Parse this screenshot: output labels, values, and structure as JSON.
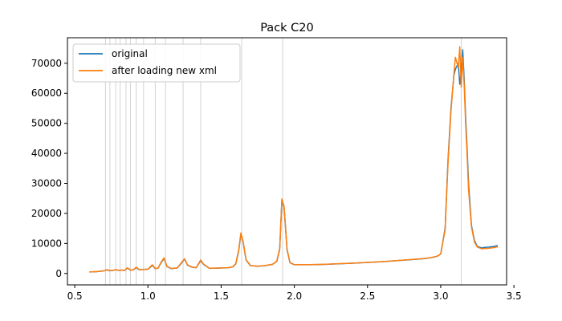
{
  "chart_data": {
    "type": "line",
    "title": "Pack C20",
    "xlabel": "",
    "ylabel": "",
    "xlim": [
      0.45,
      3.45
    ],
    "ylim": [
      -3800,
      78500
    ],
    "xticks": [
      0.5,
      1.0,
      1.5,
      2.0,
      2.5,
      3.0,
      3.5
    ],
    "xtick_labels": [
      "0.5",
      "1.0",
      "1.5",
      "2.0",
      "2.5",
      "3.0",
      "3.5"
    ],
    "yticks": [
      0,
      10000,
      20000,
      30000,
      40000,
      50000,
      60000,
      70000
    ],
    "ytick_labels": [
      "0",
      "10000",
      "20000",
      "30000",
      "40000",
      "50000",
      "60000",
      "70000"
    ],
    "grid": false,
    "legend_position": "top-left",
    "vertical_lines": {
      "color": "#d3d3d3",
      "x": [
        0.71,
        0.74,
        0.78,
        0.81,
        0.85,
        0.88,
        0.92,
        0.97,
        1.05,
        1.12,
        1.24,
        1.36,
        1.64,
        1.92,
        3.14
      ]
    },
    "series": [
      {
        "name": "original",
        "color": "#1f77b4",
        "x": [
          0.6,
          0.65,
          0.7,
          0.72,
          0.74,
          0.76,
          0.78,
          0.8,
          0.82,
          0.84,
          0.86,
          0.88,
          0.9,
          0.92,
          0.94,
          0.96,
          1.0,
          1.03,
          1.05,
          1.07,
          1.09,
          1.11,
          1.13,
          1.16,
          1.2,
          1.23,
          1.25,
          1.27,
          1.3,
          1.33,
          1.36,
          1.38,
          1.42,
          1.5,
          1.55,
          1.58,
          1.6,
          1.62,
          1.635,
          1.65,
          1.67,
          1.7,
          1.75,
          1.8,
          1.85,
          1.88,
          1.9,
          1.915,
          1.93,
          1.95,
          1.97,
          2.0,
          2.1,
          2.2,
          2.4,
          2.6,
          2.8,
          2.9,
          2.95,
          2.98,
          3.0,
          3.03,
          3.05,
          3.07,
          3.09,
          3.1,
          3.12,
          3.13,
          3.14,
          3.15,
          3.16,
          3.17,
          3.18,
          3.19,
          3.21,
          3.23,
          3.25,
          3.28,
          3.3,
          3.33,
          3.36,
          3.39
        ],
        "y": [
          500,
          600,
          900,
          1200,
          900,
          1000,
          1300,
          1000,
          1100,
          1000,
          1800,
          1100,
          1200,
          2000,
          1200,
          1300,
          1400,
          2700,
          1600,
          1800,
          3600,
          5000,
          2300,
          1600,
          1800,
          3500,
          4800,
          2800,
          2100,
          1900,
          4300,
          3000,
          1700,
          1800,
          1900,
          2200,
          3200,
          7500,
          13200,
          10500,
          4500,
          2600,
          2400,
          2600,
          3000,
          4000,
          8000,
          24500,
          22000,
          8000,
          3600,
          2900,
          2900,
          3000,
          3400,
          3900,
          4600,
          5000,
          5400,
          5800,
          6500,
          15000,
          38000,
          55000,
          66000,
          68000,
          70000,
          63000,
          67000,
          74500,
          65000,
          52000,
          42000,
          30000,
          16000,
          11000,
          9000,
          8500,
          8700,
          8800,
          9000,
          9300
        ]
      },
      {
        "name": "after loading new xml",
        "color": "#ff7f0e",
        "x": [
          0.6,
          0.65,
          0.7,
          0.72,
          0.74,
          0.76,
          0.78,
          0.8,
          0.82,
          0.84,
          0.86,
          0.88,
          0.9,
          0.92,
          0.94,
          0.96,
          1.0,
          1.03,
          1.05,
          1.07,
          1.09,
          1.11,
          1.13,
          1.16,
          1.2,
          1.23,
          1.25,
          1.27,
          1.3,
          1.33,
          1.36,
          1.38,
          1.42,
          1.5,
          1.55,
          1.58,
          1.6,
          1.62,
          1.635,
          1.65,
          1.67,
          1.7,
          1.75,
          1.8,
          1.85,
          1.88,
          1.9,
          1.915,
          1.93,
          1.95,
          1.97,
          2.0,
          2.1,
          2.2,
          2.4,
          2.6,
          2.8,
          2.9,
          2.95,
          2.98,
          3.0,
          3.03,
          3.05,
          3.07,
          3.09,
          3.1,
          3.12,
          3.13,
          3.14,
          3.15,
          3.16,
          3.17,
          3.18,
          3.19,
          3.21,
          3.23,
          3.25,
          3.28,
          3.3,
          3.33,
          3.36,
          3.39
        ],
        "y": [
          500,
          650,
          850,
          1300,
          950,
          1050,
          1250,
          1050,
          1150,
          1050,
          1900,
          1150,
          1250,
          2100,
          1250,
          1350,
          1450,
          2900,
          1650,
          1850,
          3800,
          5200,
          2350,
          1650,
          1850,
          3700,
          4900,
          2900,
          2150,
          1950,
          4500,
          3100,
          1750,
          1850,
          1950,
          2250,
          3300,
          7800,
          13500,
          10700,
          4600,
          2650,
          2450,
          2650,
          3050,
          4100,
          8300,
          24800,
          22300,
          8200,
          3650,
          2950,
          2950,
          3050,
          3450,
          3950,
          4650,
          5050,
          5450,
          5850,
          6600,
          14500,
          37000,
          54000,
          66500,
          72000,
          68500,
          75500,
          62000,
          72000,
          63000,
          50000,
          40000,
          28000,
          15500,
          10500,
          8800,
          8200,
          8300,
          8400,
          8600,
          8900
        ]
      }
    ]
  }
}
